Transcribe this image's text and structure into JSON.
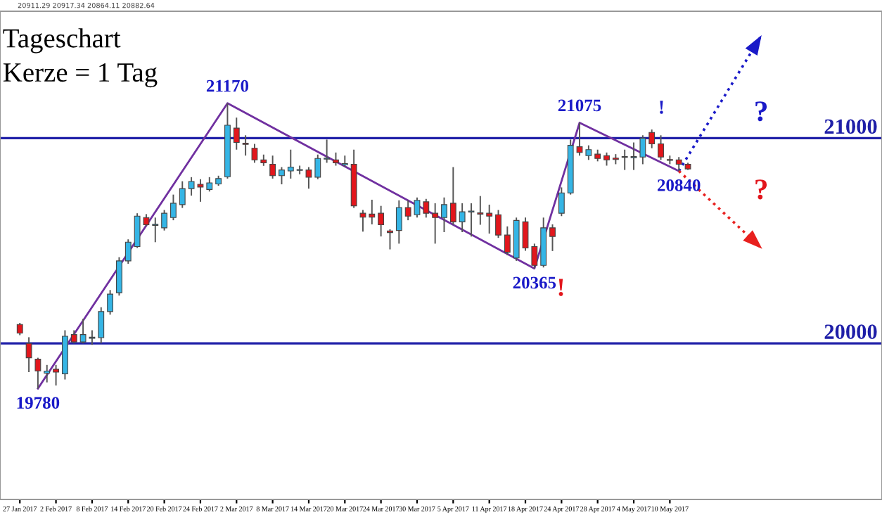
{
  "chart_data": {
    "type": "candlestick",
    "title": "Tageschart",
    "subtitle": "Kerze = 1 Tag",
    "categories": [
      "27 Jan 2017",
      null,
      null,
      null,
      "2 Feb 2017",
      null,
      null,
      null,
      "8 Feb 2017",
      null,
      null,
      null,
      "14 Feb 2017",
      null,
      null,
      null,
      "20 Feb 2017",
      null,
      null,
      null,
      "24 Feb 2017",
      null,
      null,
      null,
      "2 Mar 2017",
      null,
      null,
      null,
      "8 Mar 2017",
      null,
      null,
      null,
      "14 Mar 2017",
      null,
      null,
      null,
      "20 Mar 2017",
      null,
      null,
      null,
      "24 Mar 2017",
      null,
      null,
      null,
      "30 Mar 2017",
      null,
      null,
      null,
      "5 Apr 2017",
      null,
      null,
      null,
      "11 Apr 2017",
      null,
      null,
      null,
      "18 Apr 2017",
      null,
      null,
      null,
      "24 Apr 2017",
      null,
      null,
      null,
      "28 Apr 2017",
      null,
      null,
      null,
      "4 May 2017",
      null,
      null,
      null,
      "10 May 2017",
      null,
      null,
      null,
      null,
      null,
      null,
      null,
      null,
      null,
      null,
      null,
      null,
      null,
      null,
      null,
      null,
      null,
      null,
      null,
      null,
      null,
      null,
      null
    ],
    "ohlc": [
      [
        20092,
        20100,
        20040,
        20050
      ],
      [
        20000,
        20030,
        19860,
        19930
      ],
      [
        19923,
        19930,
        19780,
        19866
      ],
      [
        19855,
        19895,
        19810,
        19865
      ],
      [
        19874,
        19895,
        19795,
        19860
      ],
      [
        19852,
        20064,
        19824,
        20035
      ],
      [
        20043,
        20064,
        20000,
        20007
      ],
      [
        20007,
        20120,
        20000,
        20043
      ],
      [
        20025,
        20064,
        19993,
        20030
      ],
      [
        20028,
        20176,
        20000,
        20155
      ],
      [
        20155,
        20260,
        20140,
        20240
      ],
      [
        20247,
        20420,
        20233,
        20402
      ],
      [
        20402,
        20507,
        20388,
        20493
      ],
      [
        20472,
        20634,
        20465,
        20620
      ],
      [
        20613,
        20630,
        20570,
        20578
      ],
      [
        20575,
        20613,
        20493,
        20580
      ],
      [
        20563,
        20650,
        20550,
        20634
      ],
      [
        20613,
        20725,
        20600,
        20683
      ],
      [
        20676,
        20790,
        20660,
        20754
      ],
      [
        20754,
        20810,
        20720,
        20789
      ],
      [
        20775,
        20800,
        20690,
        20762
      ],
      [
        20750,
        20810,
        20740,
        20782
      ],
      [
        20777,
        20817,
        20768,
        20803
      ],
      [
        20812,
        21170,
        20803,
        21063
      ],
      [
        21049,
        21100,
        20944,
        20979
      ],
      [
        20975,
        21014,
        20915,
        20970
      ],
      [
        20951,
        20972,
        20880,
        20894
      ],
      [
        20894,
        20920,
        20865,
        20880
      ],
      [
        20873,
        20915,
        20803,
        20817
      ],
      [
        20817,
        20859,
        20775,
        20845
      ],
      [
        20840,
        20944,
        20803,
        20859
      ],
      [
        20843,
        20866,
        20824,
        20847
      ],
      [
        20845,
        20859,
        20754,
        20810
      ],
      [
        20810,
        20920,
        20800,
        20901
      ],
      [
        20898,
        20993,
        20880,
        20903
      ],
      [
        20894,
        20930,
        20866,
        20880
      ],
      [
        20870,
        20915,
        20860,
        20876
      ],
      [
        20873,
        20944,
        20660,
        20670
      ],
      [
        20634,
        20650,
        20545,
        20615
      ],
      [
        20630,
        20700,
        20580,
        20615
      ],
      [
        20634,
        20670,
        20521,
        20578
      ],
      [
        20548,
        20556,
        20458,
        20540
      ],
      [
        20550,
        20697,
        20486,
        20662
      ],
      [
        20662,
        20697,
        20600,
        20620
      ],
      [
        20627,
        20711,
        20613,
        20697
      ],
      [
        20690,
        20704,
        20613,
        20634
      ],
      [
        20634,
        20683,
        20486,
        20613
      ],
      [
        20613,
        20711,
        20542,
        20676
      ],
      [
        20683,
        20859,
        20578,
        20592
      ],
      [
        20592,
        20683,
        20542,
        20641
      ],
      [
        20640,
        20683,
        20521,
        20645
      ],
      [
        20636,
        20718,
        20578,
        20630
      ],
      [
        20634,
        20676,
        20535,
        20620
      ],
      [
        20627,
        20650,
        20514,
        20528
      ],
      [
        20528,
        20570,
        20430,
        20444
      ],
      [
        20416,
        20613,
        20402,
        20599
      ],
      [
        20592,
        20613,
        20451,
        20465
      ],
      [
        20472,
        20486,
        20365,
        20380
      ],
      [
        20380,
        20613,
        20370,
        20563
      ],
      [
        20563,
        20580,
        20450,
        20521
      ],
      [
        20634,
        20760,
        20620,
        20733
      ],
      [
        20733,
        20993,
        20725,
        20965
      ],
      [
        20958,
        21075,
        20915,
        20930
      ],
      [
        20915,
        20965,
        20894,
        20944
      ],
      [
        20922,
        20944,
        20887,
        20901
      ],
      [
        20915,
        20930,
        20866,
        20894
      ],
      [
        20903,
        20922,
        20873,
        20896
      ],
      [
        20906,
        20944,
        20845,
        20910
      ],
      [
        20905,
        20979,
        20845,
        20910
      ],
      [
        20908,
        21014,
        20873,
        21000
      ],
      [
        21028,
        21042,
        20951,
        20972
      ],
      [
        20972,
        21014,
        20894,
        20908
      ],
      [
        20896,
        20915,
        20873,
        20892
      ],
      [
        20894,
        20908,
        20840,
        20873
      ],
      [
        20873,
        20880,
        20845,
        20850
      ],
      null,
      null,
      null,
      null,
      null,
      null,
      null,
      null,
      null,
      null,
      null,
      null,
      null,
      null,
      null,
      null,
      null,
      null,
      null,
      null,
      null
    ],
    "colors": [
      "#e2161c",
      "#e2161c",
      "#e2161c",
      "#35b5e5",
      "#e2161c",
      "#35b5e5",
      "#e2161c",
      "#35b5e5",
      "#35b5e5",
      "#35b5e5",
      "#35b5e5",
      "#35b5e5",
      "#35b5e5",
      "#35b5e5",
      "#e2161c",
      "#35b5e5",
      "#35b5e5",
      "#35b5e5",
      "#35b5e5",
      "#35b5e5",
      "#e2161c",
      "#35b5e5",
      "#35b5e5",
      "#35b5e5",
      "#e2161c",
      "#e2161c",
      "#e2161c",
      "#e2161c",
      "#e2161c",
      "#35b5e5",
      "#35b5e5",
      "#35b5e5",
      "#e2161c",
      "#35b5e5",
      "#35b5e5",
      "#e2161c",
      "#35b5e5",
      "#e2161c",
      "#e2161c",
      "#e2161c",
      "#e2161c",
      "#e2161c",
      "#35b5e5",
      "#e2161c",
      "#35b5e5",
      "#e2161c",
      "#e2161c",
      "#35b5e5",
      "#e2161c",
      "#35b5e5",
      "#35b5e5",
      "#e2161c",
      "#e2161c",
      "#e2161c",
      "#e2161c",
      "#35b5e5",
      "#e2161c",
      "#e2161c",
      "#35b5e5",
      "#e2161c",
      "#35b5e5",
      "#35b5e5",
      "#e2161c",
      "#35b5e5",
      "#e2161c",
      "#e2161c",
      "#e2161c",
      "#35b5e5",
      "#35b5e5",
      "#35b5e5",
      "#e2161c",
      "#e2161c",
      "#e2161c",
      "#e2161c",
      "#e2161c",
      null,
      null,
      null,
      null,
      null,
      null,
      null,
      null,
      null,
      null,
      null,
      null,
      null,
      null,
      null,
      null,
      null,
      null,
      null,
      null,
      null
    ],
    "series": [
      {
        "type": "line",
        "color": "#7030a0",
        "values": [
          null,
          null,
          19780,
          null,
          null,
          null,
          null,
          null,
          null,
          null,
          null,
          null,
          null,
          null,
          null,
          null,
          null,
          null,
          null,
          null,
          null,
          null,
          null,
          21170,
          null,
          null,
          null,
          null,
          null,
          null,
          null,
          null,
          null,
          null,
          null,
          null,
          null,
          null,
          null,
          null,
          null,
          null,
          null,
          null,
          null,
          null,
          null,
          null,
          null,
          null,
          null,
          null,
          null,
          null,
          null,
          null,
          null,
          20365,
          null,
          null,
          null,
          null,
          21075,
          null,
          null,
          null,
          null,
          null,
          null,
          null,
          null,
          null,
          null,
          20840,
          null,
          null,
          null,
          null,
          null,
          null,
          null,
          null,
          null,
          null,
          null,
          null,
          null,
          null,
          null,
          null,
          null,
          null,
          null,
          null,
          null,
          null
        ]
      },
      {
        "type": "line",
        "color": "#1a1ac8",
        "line_style": "dotted",
        "values": [
          null,
          null,
          null,
          null,
          null,
          null,
          null,
          null,
          null,
          null,
          null,
          null,
          null,
          null,
          null,
          null,
          null,
          null,
          null,
          null,
          null,
          null,
          null,
          null,
          null,
          null,
          null,
          null,
          null,
          null,
          null,
          null,
          null,
          null,
          null,
          null,
          null,
          null,
          null,
          null,
          null,
          null,
          null,
          null,
          null,
          null,
          null,
          null,
          null,
          null,
          null,
          null,
          null,
          null,
          null,
          null,
          null,
          null,
          null,
          null,
          null,
          null,
          null,
          null,
          null,
          null,
          null,
          null,
          null,
          null,
          null,
          null,
          null,
          20840,
          null,
          null,
          null,
          null,
          null,
          null,
          null,
          null,
          21490,
          null,
          null,
          null,
          null,
          null,
          null,
          null,
          null,
          null,
          null,
          null,
          null,
          null
        ]
      },
      {
        "type": "line",
        "color": "#e8201e",
        "line_style": "dotted",
        "values": [
          null,
          null,
          null,
          null,
          null,
          null,
          null,
          null,
          null,
          null,
          null,
          null,
          null,
          null,
          null,
          null,
          null,
          null,
          null,
          null,
          null,
          null,
          null,
          null,
          null,
          null,
          null,
          null,
          null,
          null,
          null,
          null,
          null,
          null,
          null,
          null,
          null,
          null,
          null,
          null,
          null,
          null,
          null,
          null,
          null,
          null,
          null,
          null,
          null,
          null,
          null,
          null,
          null,
          null,
          null,
          null,
          null,
          null,
          null,
          null,
          null,
          null,
          null,
          null,
          null,
          null,
          null,
          null,
          null,
          null,
          null,
          null,
          null,
          20840,
          null,
          null,
          null,
          null,
          null,
          null,
          null,
          null,
          20470,
          null,
          null,
          null,
          null,
          null,
          null,
          null,
          null,
          null,
          null,
          null,
          null,
          null
        ]
      }
    ],
    "ref_lines": [
      {
        "axis": "y",
        "value": 21000,
        "label": "21000",
        "color": "#1f1fa8"
      },
      {
        "axis": "y",
        "value": 20000,
        "label": "20000",
        "color": "#1f1fa8"
      }
    ],
    "annotations": [
      {
        "text": "21170",
        "y": 21170
      },
      {
        "text": "21075",
        "y": 21075
      },
      {
        "text": "20840",
        "y": 20840
      },
      {
        "text": "20365",
        "y": 20365
      },
      {
        "text": "19780",
        "y": 19780
      },
      "!",
      "!",
      "?",
      "?",
      "20911.29 20917.34 20864.11 20882.64"
    ],
    "tick_labels": "x",
    "grid": false,
    "legend": false
  }
}
